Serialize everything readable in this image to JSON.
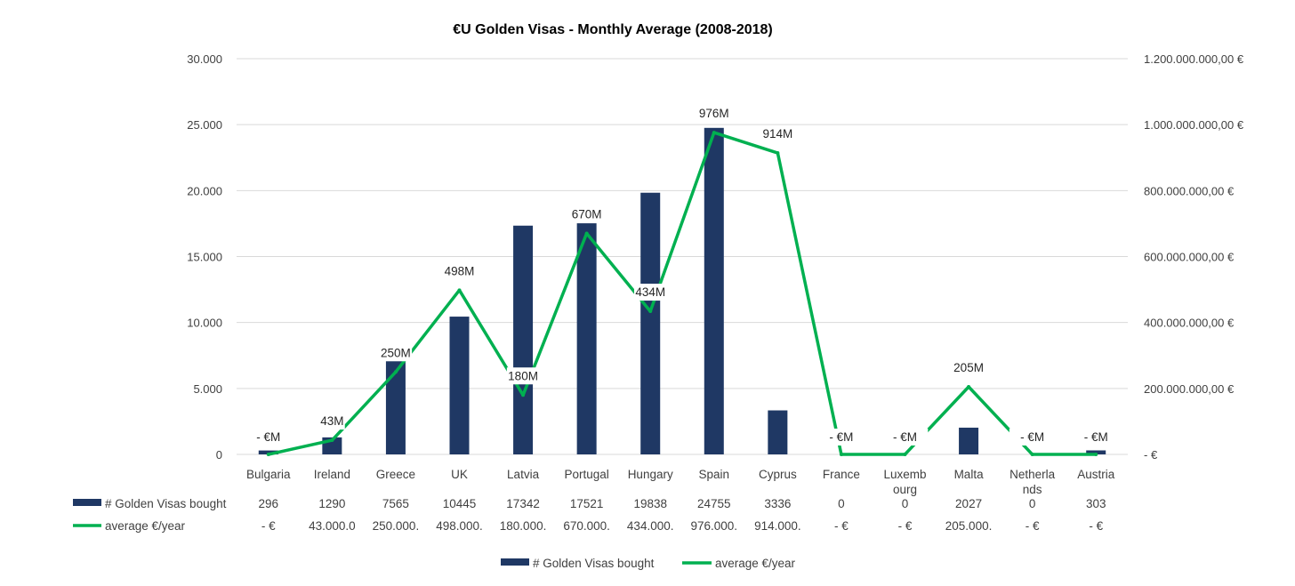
{
  "chart_data": {
    "type": "bar",
    "title": "€U Golden Visas - Monthly Average (2008-2018)",
    "categories": [
      "Bulgaria",
      "Ireland",
      "Greece",
      "UK",
      "Latvia",
      "Portugal",
      "Hungary",
      "Spain",
      "Cyprus",
      "France",
      "Luxembourg",
      "Malta",
      "Netherlands",
      "Austria"
    ],
    "category_display": [
      [
        "Bulgaria"
      ],
      [
        "Ireland"
      ],
      [
        "Greece"
      ],
      [
        "UK"
      ],
      [
        "Latvia"
      ],
      [
        "Portugal"
      ],
      [
        "Hungary"
      ],
      [
        "Spain"
      ],
      [
        "Cyprus"
      ],
      [
        "France"
      ],
      [
        "Luxemb",
        "ourg"
      ],
      [
        "Malta"
      ],
      [
        "Netherla",
        "nds"
      ],
      [
        "Austria"
      ]
    ],
    "left_axis": {
      "ylim": [
        0,
        30000
      ],
      "ticks": [
        0,
        5000,
        10000,
        15000,
        20000,
        25000,
        30000
      ],
      "tick_labels": [
        "0",
        "5.000",
        "10.000",
        "15.000",
        "20.000",
        "25.000",
        "30.000"
      ]
    },
    "right_axis": {
      "ylim": [
        0,
        1200000000
      ],
      "ticks": [
        0,
        200000000,
        400000000,
        600000000,
        800000000,
        1000000000,
        1200000000
      ],
      "tick_labels": [
        "-   €",
        "200.000.000,00 €",
        "400.000.000,00 €",
        "600.000.000,00 €",
        "800.000.000,00 €",
        "1.000.000.000,00 €",
        "1.200.000.000,00 €"
      ]
    },
    "series": [
      {
        "name": "# Golden Visas bought",
        "type": "bar",
        "axis": "left",
        "color": "#1f3864",
        "values": [
          296,
          1290,
          7565,
          10445,
          17342,
          17521,
          19838,
          24755,
          3336,
          0,
          0,
          2027,
          0,
          303
        ],
        "table_labels": [
          "296",
          "1290",
          "7565",
          "10445",
          "17342",
          "17521",
          "19838",
          "24755",
          "3336",
          "0",
          "0",
          "2027",
          "0",
          "303"
        ]
      },
      {
        "name": "average €/year",
        "type": "line",
        "axis": "right",
        "color": "#00b050",
        "values": [
          0,
          43000000,
          250000000,
          498000000,
          180000000,
          670000000,
          434000000,
          976000000,
          914000000,
          0,
          0,
          205000000,
          0,
          0
        ],
        "data_labels": [
          "-   €M",
          "43M",
          "250M",
          "498M",
          "180M",
          "670M",
          "434M",
          "976M",
          "914M",
          "-   €M",
          "-   €M",
          "205M",
          "-   €M",
          "-   €M"
        ],
        "table_labels": [
          "-   €",
          "43.000.0",
          "250.000.",
          "498.000.",
          "180.000.",
          "670.000.",
          "434.000.",
          "976.000.",
          "914.000.",
          "-   €",
          "-   €",
          "205.000.",
          "-   €",
          "-   €"
        ]
      }
    ],
    "legend": {
      "placement": "bottom",
      "entries": [
        "# Golden Visas bought",
        "average €/year"
      ]
    },
    "grid": true
  }
}
